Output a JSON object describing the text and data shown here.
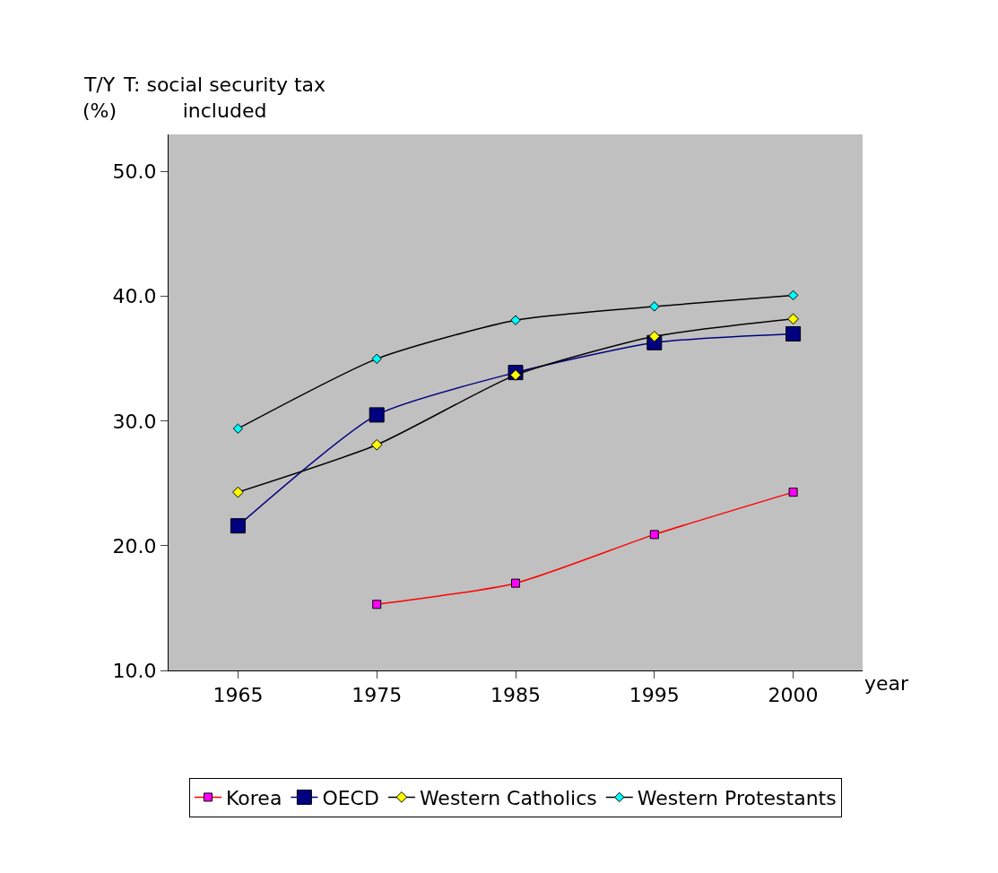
{
  "chart_data": {
    "type": "line",
    "xlabel": "year",
    "ylabel": "T/Y\n(%)",
    "annotations": [
      "T: social security tax\nincluded"
    ],
    "categories": [
      "1965",
      "1975",
      "1985",
      "1995",
      "2000"
    ],
    "ylim": [
      10,
      53
    ],
    "yticks": [
      {
        "value": 10,
        "label": "10.0"
      },
      {
        "value": 20,
        "label": "20.0"
      },
      {
        "value": 30,
        "label": "30.0"
      },
      {
        "value": 40,
        "label": "40.0"
      },
      {
        "value": 50,
        "label": "50.0"
      }
    ],
    "grid": false,
    "legend": "bottom",
    "series": [
      {
        "name": "Korea",
        "color": "#ff0000",
        "colors": [
          "#ff00ff",
          "#ff00ff",
          "#ff00ff",
          "#ff00ff",
          "#ff00ff"
        ],
        "marker": "square",
        "values": [
          null,
          15.3,
          17.0,
          20.9,
          24.3
        ]
      },
      {
        "name": "OECD",
        "color": "#000080",
        "colors": [
          "#000080",
          "#000080",
          "#000080",
          "#000080",
          "#000080"
        ],
        "marker": "square",
        "values": [
          21.6,
          30.5,
          33.9,
          36.3,
          37.0
        ]
      },
      {
        "name": "Western Catholics",
        "color": "#000000",
        "colors": [
          "#ffff00",
          "#ffff00",
          "#ffff00",
          "#ffff00",
          "#ffff00"
        ],
        "marker": "diamond",
        "values": [
          24.3,
          28.1,
          33.7,
          36.8,
          38.2
        ]
      },
      {
        "name": "Western Protestants",
        "color": "#000000",
        "colors": [
          "#00ffff",
          "#00ffff",
          "#00ffff",
          "#00ffff",
          "#00ffff"
        ],
        "marker": "diamond",
        "values": [
          29.4,
          35.0,
          38.1,
          39.2,
          40.1
        ]
      }
    ]
  }
}
